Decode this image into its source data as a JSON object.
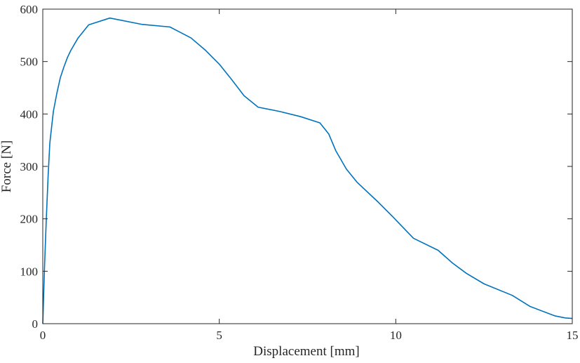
{
  "chart_data": {
    "type": "line",
    "title": "",
    "xlabel": "Displacement [mm]",
    "ylabel": "Force [N]",
    "xlim": [
      0,
      15
    ],
    "ylim": [
      0,
      600
    ],
    "xticks": [
      0,
      5,
      10,
      15
    ],
    "yticks": [
      0,
      100,
      200,
      300,
      400,
      500,
      600
    ],
    "xtick_labels": [
      "0",
      "5",
      "10",
      "15"
    ],
    "ytick_labels": [
      "0",
      "100",
      "200",
      "300",
      "400",
      "500",
      "600"
    ],
    "grid": false,
    "box": true,
    "series": [
      {
        "color": "#0072BD",
        "x": [
          0,
          0.05,
          0.1,
          0.15,
          0.2,
          0.3,
          0.4,
          0.5,
          0.6,
          0.7,
          0.8,
          1.0,
          1.3,
          1.9,
          2.8,
          3.6,
          4.2,
          4.6,
          5.0,
          5.3,
          5.7,
          6.1,
          6.7,
          7.3,
          7.85,
          8.1,
          8.3,
          8.6,
          8.9,
          9.5,
          9.9,
          10.5,
          11.2,
          11.6,
          12.0,
          12.5,
          13.3,
          13.8,
          14.5,
          14.8,
          15.0
        ],
        "y": [
          0,
          110,
          200,
          280,
          345,
          405,
          440,
          470,
          490,
          508,
          522,
          545,
          570,
          583,
          571,
          566,
          545,
          522,
          495,
          470,
          435,
          413,
          405,
          395,
          383,
          362,
          330,
          295,
          270,
          232,
          205,
          163,
          140,
          116,
          96,
          76,
          54,
          33,
          15,
          11,
          10
        ]
      }
    ]
  }
}
